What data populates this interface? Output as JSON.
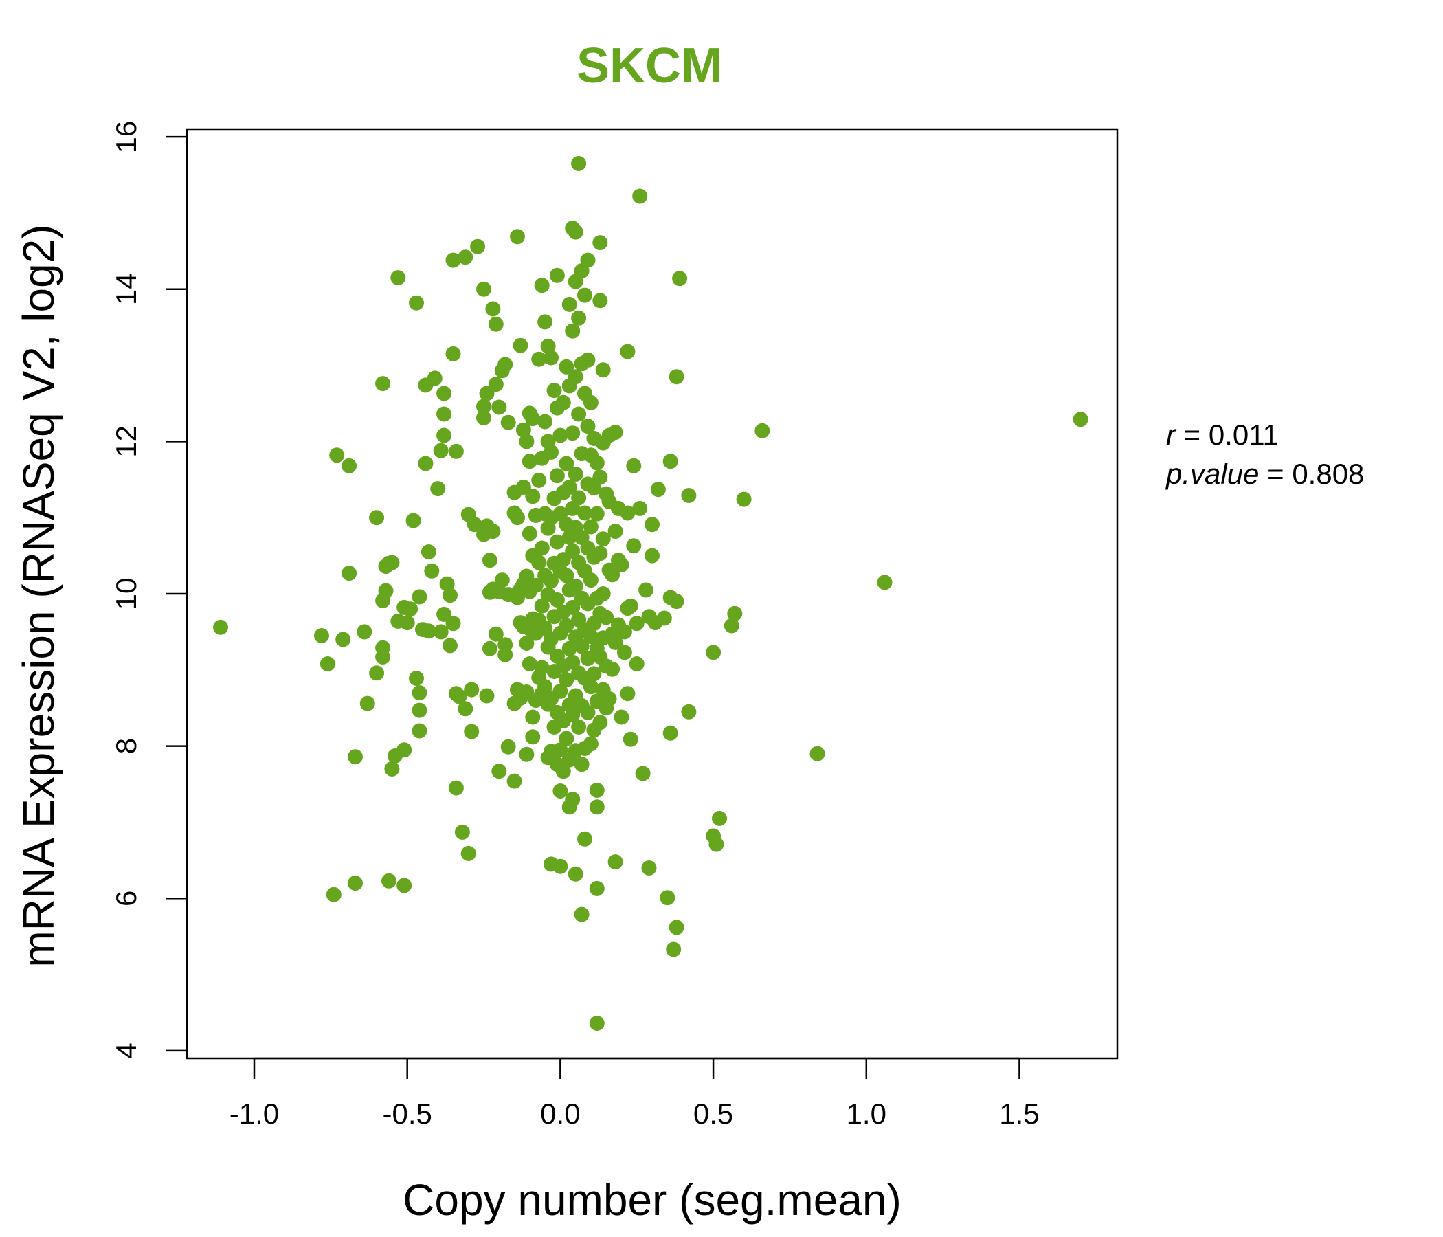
{
  "chart_data": {
    "type": "scatter",
    "title": "SKCM",
    "xlabel": "Copy number (seg.mean)",
    "ylabel": "mRNA Expression (RNASeq V2, log2)",
    "xlim": [
      -1.22,
      1.82
    ],
    "ylim": [
      3.9,
      16.1
    ],
    "xticks": [
      -1.0,
      -0.5,
      0.0,
      0.5,
      1.0,
      1.5
    ],
    "xtick_labels": [
      "-1.0",
      "-0.5",
      "0.0",
      "0.5",
      "1.0",
      "1.5"
    ],
    "yticks": [
      4,
      6,
      8,
      10,
      12,
      14,
      16
    ],
    "ytick_labels": [
      "4",
      "6",
      "8",
      "10",
      "12",
      "14",
      "16"
    ],
    "grid": false,
    "point_color": "#66a61e",
    "stats": {
      "r_label": "r",
      "r_value": "0.011",
      "p_label": "p.value",
      "p_value": "0.808"
    },
    "points": [
      [
        -1.11,
        9.56
      ],
      [
        1.7,
        12.29
      ],
      [
        1.06,
        10.15
      ],
      [
        0.84,
        7.9
      ],
      [
        0.66,
        12.14
      ],
      [
        0.6,
        11.24
      ],
      [
        0.57,
        9.74
      ],
      [
        0.56,
        9.58
      ],
      [
        0.52,
        7.05
      ],
      [
        0.51,
        6.71
      ],
      [
        0.5,
        6.82
      ],
      [
        0.5,
        9.23
      ],
      [
        0.42,
        11.29
      ],
      [
        0.42,
        8.45
      ],
      [
        0.39,
        14.14
      ],
      [
        0.38,
        12.85
      ],
      [
        0.38,
        9.9
      ],
      [
        0.38,
        5.62
      ],
      [
        0.37,
        5.33
      ],
      [
        0.36,
        11.74
      ],
      [
        0.36,
        9.95
      ],
      [
        0.36,
        8.17
      ],
      [
        0.35,
        6.01
      ],
      [
        0.34,
        9.68
      ],
      [
        0.32,
        11.37
      ],
      [
        0.31,
        9.62
      ],
      [
        0.3,
        10.91
      ],
      [
        0.3,
        10.5
      ],
      [
        0.29,
        9.7
      ],
      [
        0.29,
        6.4
      ],
      [
        0.28,
        10.05
      ],
      [
        0.27,
        7.64
      ],
      [
        0.26,
        15.22
      ],
      [
        0.26,
        11.12
      ],
      [
        0.25,
        9.61
      ],
      [
        0.25,
        9.08
      ],
      [
        0.24,
        10.63
      ],
      [
        0.24,
        11.68
      ],
      [
        0.23,
        9.84
      ],
      [
        0.23,
        8.09
      ],
      [
        0.22,
        13.18
      ],
      [
        0.22,
        11.06
      ],
      [
        0.22,
        9.81
      ],
      [
        0.22,
        8.69
      ],
      [
        0.21,
        9.23
      ],
      [
        0.21,
        9.5
      ],
      [
        0.2,
        10.38
      ],
      [
        0.2,
        8.38
      ],
      [
        0.19,
        11.12
      ],
      [
        0.19,
        9.59
      ],
      [
        0.19,
        10.44
      ],
      [
        0.18,
        12.12
      ],
      [
        0.18,
        10.82
      ],
      [
        0.18,
        9.36
      ],
      [
        0.18,
        6.48
      ],
      [
        0.17,
        10.25
      ],
      [
        0.17,
        9.47
      ],
      [
        0.17,
        9.01
      ],
      [
        0.16,
        11.21
      ],
      [
        0.16,
        12.08
      ],
      [
        0.16,
        10.31
      ],
      [
        0.16,
        8.62
      ],
      [
        0.15,
        11.31
      ],
      [
        0.15,
        9.69
      ],
      [
        0.15,
        9.05
      ],
      [
        0.15,
        8.5
      ],
      [
        0.14,
        12.94
      ],
      [
        0.14,
        11.98
      ],
      [
        0.14,
        10.72
      ],
      [
        0.14,
        10.0
      ],
      [
        0.14,
        9.42
      ],
      [
        0.14,
        8.74
      ],
      [
        0.13,
        13.85
      ],
      [
        0.13,
        14.61
      ],
      [
        0.13,
        11.53
      ],
      [
        0.13,
        10.53
      ],
      [
        0.13,
        9.74
      ],
      [
        0.13,
        9.17
      ],
      [
        0.13,
        8.31
      ],
      [
        0.12,
        11.72
      ],
      [
        0.12,
        11.05
      ],
      [
        0.12,
        9.94
      ],
      [
        0.12,
        9.28
      ],
      [
        0.12,
        8.59
      ],
      [
        0.12,
        7.42
      ],
      [
        0.12,
        7.2
      ],
      [
        0.12,
        6.13
      ],
      [
        0.12,
        4.36
      ],
      [
        0.11,
        12.04
      ],
      [
        0.11,
        11.39
      ],
      [
        0.11,
        10.48
      ],
      [
        0.11,
        9.61
      ],
      [
        0.11,
        8.95
      ],
      [
        0.11,
        8.21
      ],
      [
        0.1,
        12.51
      ],
      [
        0.1,
        11.82
      ],
      [
        0.1,
        10.88
      ],
      [
        0.1,
        10.18
      ],
      [
        0.1,
        9.44
      ],
      [
        0.1,
        8.78
      ],
      [
        0.1,
        8.03
      ],
      [
        0.09,
        13.07
      ],
      [
        0.09,
        12.2
      ],
      [
        0.09,
        11.44
      ],
      [
        0.09,
        10.6
      ],
      [
        0.09,
        9.87
      ],
      [
        0.09,
        9.15
      ],
      [
        0.09,
        8.44
      ],
      [
        0.09,
        14.38
      ],
      [
        0.08,
        13.92
      ],
      [
        0.08,
        12.63
      ],
      [
        0.08,
        11.06
      ],
      [
        0.08,
        10.3
      ],
      [
        0.08,
        9.53
      ],
      [
        0.08,
        8.89
      ],
      [
        0.08,
        7.97
      ],
      [
        0.08,
        6.78
      ],
      [
        0.07,
        14.24
      ],
      [
        0.07,
        13.02
      ],
      [
        0.07,
        11.84
      ],
      [
        0.07,
        10.74
      ],
      [
        0.07,
        9.94
      ],
      [
        0.07,
        9.31
      ],
      [
        0.07,
        8.53
      ],
      [
        0.07,
        7.76
      ],
      [
        0.07,
        5.79
      ],
      [
        0.06,
        15.65
      ],
      [
        0.06,
        13.62
      ],
      [
        0.06,
        12.36
      ],
      [
        0.06,
        11.26
      ],
      [
        0.06,
        10.41
      ],
      [
        0.06,
        9.66
      ],
      [
        0.06,
        8.96
      ],
      [
        0.06,
        8.25
      ],
      [
        0.05,
        14.75
      ],
      [
        0.05,
        14.1
      ],
      [
        0.05,
        12.85
      ],
      [
        0.05,
        11.57
      ],
      [
        0.05,
        10.87
      ],
      [
        0.05,
        10.1
      ],
      [
        0.05,
        9.43
      ],
      [
        0.05,
        8.66
      ],
      [
        0.05,
        7.94
      ],
      [
        0.05,
        6.32
      ],
      [
        0.04,
        14.8
      ],
      [
        0.04,
        13.45
      ],
      [
        0.04,
        12.11
      ],
      [
        0.04,
        11.12
      ],
      [
        0.04,
        10.56
      ],
      [
        0.04,
        9.82
      ],
      [
        0.04,
        9.1
      ],
      [
        0.04,
        8.41
      ],
      [
        0.04,
        7.3
      ],
      [
        0.03,
        13.8
      ],
      [
        0.03,
        12.73
      ],
      [
        0.03,
        11.4
      ],
      [
        0.03,
        10.74
      ],
      [
        0.03,
        10.05
      ],
      [
        0.03,
        9.28
      ],
      [
        0.03,
        8.54
      ],
      [
        0.03,
        7.82
      ],
      [
        0.03,
        7.2
      ],
      [
        0.02,
        12.98
      ],
      [
        0.02,
        11.71
      ],
      [
        0.02,
        10.91
      ],
      [
        0.02,
        10.24
      ],
      [
        0.02,
        9.58
      ],
      [
        0.02,
        8.87
      ],
      [
        0.02,
        8.1
      ],
      [
        0.01,
        12.51
      ],
      [
        0.01,
        11.33
      ],
      [
        0.01,
        10.45
      ],
      [
        0.01,
        9.76
      ],
      [
        0.01,
        9.05
      ],
      [
        0.01,
        8.33
      ],
      [
        0.01,
        7.67
      ],
      [
        0.0,
        12.08
      ],
      [
        0.0,
        11.05
      ],
      [
        0.0,
        10.3
      ],
      [
        0.0,
        9.48
      ],
      [
        0.0,
        8.72
      ],
      [
        0.0,
        7.95
      ],
      [
        0.0,
        7.41
      ],
      [
        0.0,
        6.42
      ],
      [
        -0.01,
        14.18
      ],
      [
        -0.01,
        12.44
      ],
      [
        -0.01,
        11.55
      ],
      [
        -0.01,
        10.68
      ],
      [
        -0.01,
        9.92
      ],
      [
        -0.01,
        9.18
      ],
      [
        -0.01,
        8.44
      ],
      [
        -0.01,
        7.76
      ],
      [
        -0.02,
        12.67
      ],
      [
        -0.02,
        11.25
      ],
      [
        -0.02,
        10.4
      ],
      [
        -0.02,
        9.7
      ],
      [
        -0.02,
        8.98
      ],
      [
        -0.02,
        8.25
      ],
      [
        -0.03,
        13.1
      ],
      [
        -0.03,
        11.86
      ],
      [
        -0.03,
        11.0
      ],
      [
        -0.03,
        10.17
      ],
      [
        -0.03,
        9.41
      ],
      [
        -0.03,
        8.62
      ],
      [
        -0.03,
        7.93
      ],
      [
        -0.03,
        6.45
      ],
      [
        -0.04,
        13.25
      ],
      [
        -0.04,
        12.0
      ],
      [
        -0.04,
        10.86
      ],
      [
        -0.04,
        9.99
      ],
      [
        -0.04,
        9.3
      ],
      [
        -0.04,
        8.55
      ],
      [
        -0.04,
        7.85
      ],
      [
        -0.05,
        13.57
      ],
      [
        -0.05,
        12.26
      ],
      [
        -0.05,
        11.05
      ],
      [
        -0.05,
        10.24
      ],
      [
        -0.05,
        9.55
      ],
      [
        -0.05,
        8.78
      ],
      [
        -0.06,
        14.05
      ],
      [
        -0.06,
        11.78
      ],
      [
        -0.06,
        10.6
      ],
      [
        -0.06,
        9.84
      ],
      [
        -0.06,
        9.03
      ],
      [
        -0.06,
        8.69
      ],
      [
        -0.07,
        13.08
      ],
      [
        -0.07,
        11.49
      ],
      [
        -0.07,
        10.41
      ],
      [
        -0.07,
        9.65
      ],
      [
        -0.07,
        8.9
      ],
      [
        -0.08,
        11.03
      ],
      [
        -0.08,
        10.11
      ],
      [
        -0.08,
        9.48
      ],
      [
        -0.08,
        8.6
      ],
      [
        -0.09,
        12.3
      ],
      [
        -0.09,
        11.28
      ],
      [
        -0.09,
        10.5
      ],
      [
        -0.09,
        9.67
      ],
      [
        -0.09,
        8.38
      ],
      [
        -0.09,
        8.12
      ],
      [
        -0.1,
        12.37
      ],
      [
        -0.1,
        11.74
      ],
      [
        -0.1,
        10.79
      ],
      [
        -0.1,
        10.03
      ],
      [
        -0.1,
        9.54
      ],
      [
        -0.1,
        9.08
      ],
      [
        -0.11,
        12.0
      ],
      [
        -0.11,
        10.23
      ],
      [
        -0.11,
        9.35
      ],
      [
        -0.11,
        8.71
      ],
      [
        -0.11,
        7.89
      ],
      [
        -0.12,
        12.15
      ],
      [
        -0.12,
        11.4
      ],
      [
        -0.12,
        10.13
      ],
      [
        -0.12,
        9.57
      ],
      [
        -0.13,
        13.26
      ],
      [
        -0.13,
        10.06
      ],
      [
        -0.13,
        9.62
      ],
      [
        -0.13,
        8.63
      ],
      [
        -0.14,
        14.69
      ],
      [
        -0.14,
        11.0
      ],
      [
        -0.14,
        9.95
      ],
      [
        -0.14,
        8.74
      ],
      [
        -0.15,
        11.33
      ],
      [
        -0.15,
        11.06
      ],
      [
        -0.15,
        8.56
      ],
      [
        -0.15,
        7.54
      ],
      [
        -0.17,
        12.25
      ],
      [
        -0.17,
        9.99
      ],
      [
        -0.17,
        7.99
      ],
      [
        -0.18,
        13.01
      ],
      [
        -0.18,
        9.33
      ],
      [
        -0.18,
        9.2
      ],
      [
        -0.19,
        12.93
      ],
      [
        -0.19,
        10.18
      ],
      [
        -0.2,
        12.45
      ],
      [
        -0.2,
        10.03
      ],
      [
        -0.2,
        7.67
      ],
      [
        -0.21,
        13.54
      ],
      [
        -0.21,
        12.75
      ],
      [
        -0.21,
        9.47
      ],
      [
        -0.22,
        13.74
      ],
      [
        -0.22,
        10.82
      ],
      [
        -0.22,
        10.06
      ],
      [
        -0.23,
        10.44
      ],
      [
        -0.23,
        10.02
      ],
      [
        -0.23,
        9.28
      ],
      [
        -0.24,
        12.63
      ],
      [
        -0.24,
        10.89
      ],
      [
        -0.24,
        8.66
      ],
      [
        -0.25,
        14.0
      ],
      [
        -0.25,
        12.46
      ],
      [
        -0.25,
        12.31
      ],
      [
        -0.25,
        10.78
      ],
      [
        -0.27,
        14.56
      ],
      [
        -0.28,
        10.91
      ],
      [
        -0.29,
        8.74
      ],
      [
        -0.29,
        8.19
      ],
      [
        -0.3,
        11.04
      ],
      [
        -0.3,
        6.59
      ],
      [
        -0.31,
        14.42
      ],
      [
        -0.31,
        8.49
      ],
      [
        -0.32,
        6.87
      ],
      [
        -0.33,
        8.65
      ],
      [
        -0.34,
        11.87
      ],
      [
        -0.34,
        8.69
      ],
      [
        -0.34,
        7.45
      ],
      [
        -0.35,
        13.15
      ],
      [
        -0.35,
        14.38
      ],
      [
        -0.35,
        9.61
      ],
      [
        -0.36,
        9.32
      ],
      [
        -0.36,
        9.98
      ],
      [
        -0.37,
        10.13
      ],
      [
        -0.38,
        12.36
      ],
      [
        -0.38,
        12.08
      ],
      [
        -0.38,
        12.63
      ],
      [
        -0.38,
        9.73
      ],
      [
        -0.39,
        11.88
      ],
      [
        -0.39,
        9.5
      ],
      [
        -0.4,
        11.38
      ],
      [
        -0.41,
        12.83
      ],
      [
        -0.42,
        10.3
      ],
      [
        -0.43,
        9.51
      ],
      [
        -0.43,
        10.55
      ],
      [
        -0.44,
        12.74
      ],
      [
        -0.44,
        11.71
      ],
      [
        -0.45,
        9.53
      ],
      [
        -0.46,
        9.96
      ],
      [
        -0.46,
        8.7
      ],
      [
        -0.46,
        8.47
      ],
      [
        -0.46,
        8.2
      ],
      [
        -0.47,
        13.82
      ],
      [
        -0.47,
        8.89
      ],
      [
        -0.48,
        10.96
      ],
      [
        -0.49,
        9.8
      ],
      [
        -0.5,
        9.62
      ],
      [
        -0.51,
        9.82
      ],
      [
        -0.51,
        7.95
      ],
      [
        -0.51,
        6.17
      ],
      [
        -0.53,
        14.15
      ],
      [
        -0.53,
        9.64
      ],
      [
        -0.54,
        7.87
      ],
      [
        -0.55,
        10.41
      ],
      [
        -0.55,
        7.7
      ],
      [
        -0.56,
        10.4
      ],
      [
        -0.56,
        6.23
      ],
      [
        -0.57,
        10.36
      ],
      [
        -0.57,
        10.04
      ],
      [
        -0.58,
        9.91
      ],
      [
        -0.58,
        9.29
      ],
      [
        -0.58,
        9.17
      ],
      [
        -0.58,
        12.76
      ],
      [
        -0.6,
        11.0
      ],
      [
        -0.6,
        8.96
      ],
      [
        -0.63,
        8.56
      ],
      [
        -0.64,
        9.5
      ],
      [
        -0.67,
        7.86
      ],
      [
        -0.67,
        6.2
      ],
      [
        -0.69,
        10.27
      ],
      [
        -0.69,
        11.68
      ],
      [
        -0.71,
        9.4
      ],
      [
        -0.73,
        11.82
      ],
      [
        -0.74,
        6.05
      ],
      [
        -0.76,
        9.08
      ],
      [
        -0.78,
        9.45
      ]
    ]
  }
}
